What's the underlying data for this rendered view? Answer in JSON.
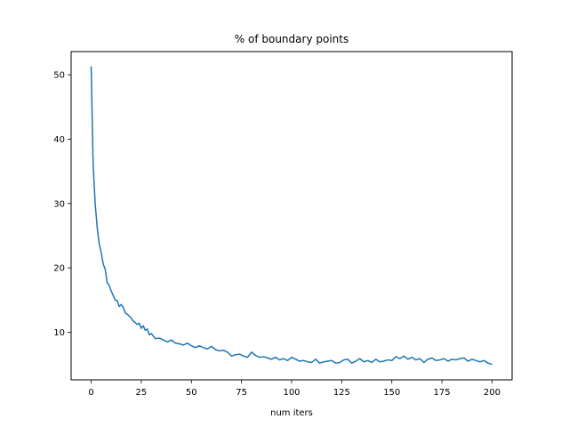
{
  "chart_data": {
    "type": "line",
    "title": "% of boundary points",
    "xlabel": "num iters",
    "ylabel": "",
    "xlim": [
      -9.99,
      209.99
    ],
    "ylim": [
      2.6,
      53.6
    ],
    "xticks": [
      0,
      25,
      50,
      75,
      100,
      125,
      150,
      175,
      200
    ],
    "yticks": [
      10,
      20,
      30,
      40,
      50
    ],
    "xtick_labels": [
      "0",
      "25",
      "50",
      "75",
      "100",
      "125",
      "150",
      "175",
      "200"
    ],
    "ytick_labels": [
      "10",
      "20",
      "30",
      "40",
      "50"
    ],
    "grid": false,
    "legend": "none",
    "colors": {
      "line": "#1f77b4",
      "axes": "#000000",
      "background": "#ffffff"
    },
    "series": [
      {
        "x": [
          0,
          1,
          2,
          3,
          4,
          5,
          6,
          7,
          8,
          9,
          10,
          11,
          12,
          13,
          14,
          15,
          16,
          17,
          18,
          19,
          20,
          21,
          22,
          23,
          24,
          25,
          26,
          27,
          28,
          29,
          30,
          32,
          34,
          36,
          38,
          40,
          42,
          44,
          46,
          48,
          50,
          52,
          54,
          56,
          58,
          60,
          62,
          64,
          66,
          68,
          70,
          72,
          74,
          76,
          78,
          80,
          82,
          84,
          86,
          88,
          90,
          92,
          94,
          96,
          98,
          100,
          102,
          104,
          106,
          108,
          110,
          112,
          114,
          116,
          118,
          120,
          122,
          124,
          126,
          128,
          130,
          132,
          134,
          136,
          138,
          140,
          142,
          144,
          146,
          148,
          150,
          152,
          154,
          156,
          158,
          160,
          162,
          164,
          166,
          168,
          170,
          172,
          174,
          176,
          178,
          180,
          182,
          184,
          186,
          188,
          190,
          192,
          194,
          196,
          198,
          200
        ],
        "values": [
          51.3,
          36.0,
          30.0,
          26.3,
          23.8,
          22.4,
          20.6,
          19.8,
          17.7,
          17.3,
          16.4,
          15.7,
          15.0,
          14.9,
          14.0,
          14.3,
          13.9,
          13.0,
          12.8,
          12.5,
          12.2,
          11.7,
          11.5,
          11.2,
          11.4,
          10.6,
          11.0,
          10.3,
          10.5,
          9.6,
          9.8,
          9.0,
          9.1,
          8.8,
          8.5,
          8.8,
          8.3,
          8.2,
          8.0,
          8.3,
          7.9,
          7.6,
          7.9,
          7.6,
          7.4,
          7.8,
          7.3,
          7.1,
          7.2,
          6.9,
          6.3,
          6.5,
          6.6,
          6.3,
          6.1,
          6.9,
          6.4,
          6.1,
          6.2,
          6.0,
          5.8,
          6.1,
          5.7,
          5.9,
          5.6,
          6.1,
          5.8,
          5.5,
          5.6,
          5.4,
          5.3,
          5.8,
          5.2,
          5.4,
          5.5,
          5.6,
          5.2,
          5.3,
          5.7,
          5.8,
          5.2,
          5.5,
          5.9,
          5.4,
          5.6,
          5.3,
          5.8,
          5.4,
          5.5,
          5.7,
          5.6,
          6.2,
          5.9,
          6.3,
          5.8,
          6.1,
          5.7,
          5.9,
          5.3,
          5.8,
          6.0,
          5.6,
          5.7,
          5.9,
          5.5,
          5.8,
          5.7,
          5.9,
          6.0,
          5.5,
          5.8,
          5.6,
          5.4,
          5.6,
          5.2,
          5.0
        ]
      }
    ]
  }
}
